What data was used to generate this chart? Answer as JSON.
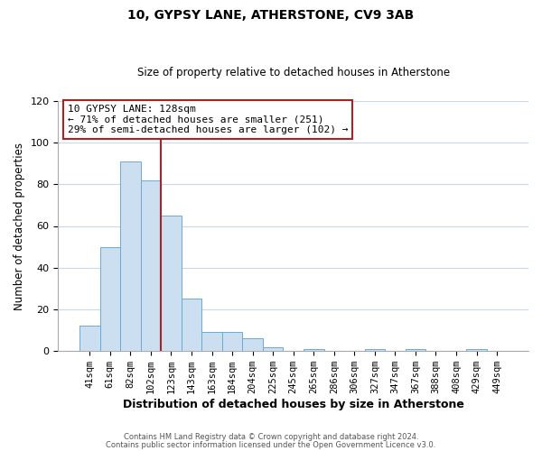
{
  "title": "10, GYPSY LANE, ATHERSTONE, CV9 3AB",
  "subtitle": "Size of property relative to detached houses in Atherstone",
  "xlabel": "Distribution of detached houses by size in Atherstone",
  "ylabel": "Number of detached properties",
  "bar_labels": [
    "41sqm",
    "61sqm",
    "82sqm",
    "102sqm",
    "123sqm",
    "143sqm",
    "163sqm",
    "184sqm",
    "204sqm",
    "225sqm",
    "245sqm",
    "265sqm",
    "286sqm",
    "306sqm",
    "327sqm",
    "347sqm",
    "367sqm",
    "388sqm",
    "408sqm",
    "429sqm",
    "449sqm"
  ],
  "bar_values": [
    12,
    50,
    91,
    82,
    65,
    25,
    9,
    9,
    6,
    2,
    0,
    1,
    0,
    0,
    1,
    0,
    1,
    0,
    0,
    1,
    0
  ],
  "bar_color": "#ccdff0",
  "bar_edge_color": "#6aaad4",
  "red_line_bar_index": 4,
  "ylim": [
    0,
    120
  ],
  "yticks": [
    0,
    20,
    40,
    60,
    80,
    100,
    120
  ],
  "annotation_text": "10 GYPSY LANE: 128sqm\n← 71% of detached houses are smaller (251)\n29% of semi-detached houses are larger (102) →",
  "footer_line1": "Contains HM Land Registry data © Crown copyright and database right 2024.",
  "footer_line2": "Contains public sector information licensed under the Open Government Licence v3.0.",
  "background_color": "#ffffff",
  "grid_color": "#c8d8ea",
  "red_color": "#aa2222"
}
